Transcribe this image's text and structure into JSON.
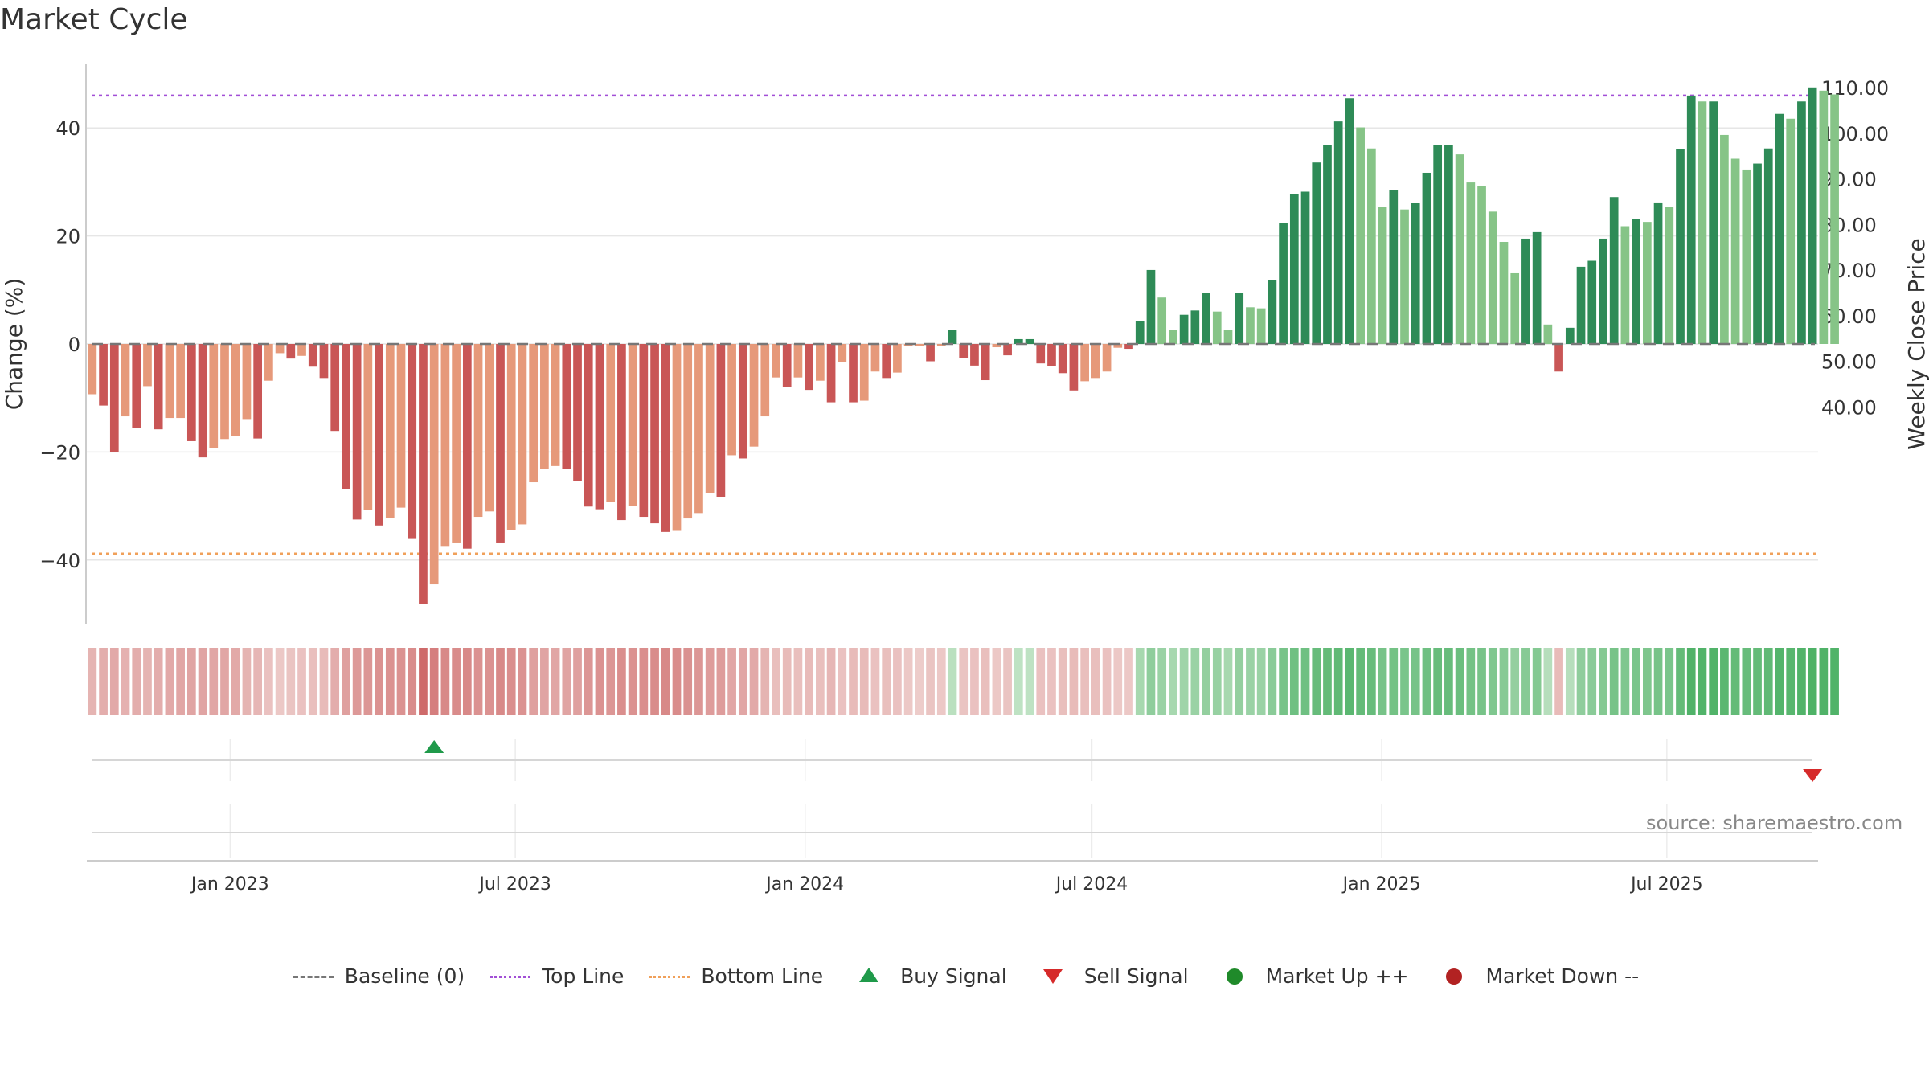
{
  "title": "Market Cycle",
  "source": "source: sharemaestro.com",
  "colors": {
    "down_dark": "#c95656",
    "down_light": "#e6997a",
    "up_dark": "#2e8b57",
    "up_light": "#86c487",
    "top_line": "#a24fd6",
    "bottom_line": "#f0a05a",
    "baseline": "#777777",
    "buy": "#1f9a4a",
    "sell": "#d62a2a",
    "market_up": "#1f8a2a",
    "market_down": "#b22222"
  },
  "chart_data": {
    "type": "bar",
    "title": "Market Cycle",
    "ylabel": "Change (%)",
    "y2label": "Weekly Close Price",
    "ylim": [
      -52,
      52
    ],
    "y_ticks": [
      "−40",
      "−20",
      "0",
      "20",
      "40"
    ],
    "y_tick_values": [
      -40,
      -20,
      0,
      20,
      40
    ],
    "y2lim": [
      34.8,
      111.0
    ],
    "y2_ticks": [
      "40.00",
      "50.00",
      "60.00",
      "70.00",
      "80.00",
      "90.00",
      "100.00",
      "110.00"
    ],
    "y2_tick_values": [
      40,
      50,
      60,
      70,
      80,
      90,
      100,
      110
    ],
    "x_start": "2022-10-02",
    "x_end": "2025-10-05",
    "x_ticks": [
      {
        "label": "Jan 2023",
        "date": "2023-01-01"
      },
      {
        "label": "Jul 2023",
        "date": "2023-07-01"
      },
      {
        "label": "Jan 2024",
        "date": "2024-01-01"
      },
      {
        "label": "Jul 2024",
        "date": "2024-07-01"
      },
      {
        "label": "Jan 2025",
        "date": "2025-01-01"
      },
      {
        "label": "Jul 2025",
        "date": "2025-07-01"
      }
    ],
    "first_week": "2022-10-02",
    "change": [
      -9.3,
      -11.4,
      -20,
      -13.4,
      -15.6,
      -7.8,
      -15.8,
      -13.7,
      -13.7,
      -18,
      -21,
      -19.3,
      -17.6,
      -17,
      -13.9,
      -17.5,
      -6.8,
      -1.7,
      -2.7,
      -2.2,
      -4.2,
      -6.3,
      -16.1,
      -26.8,
      -32.5,
      -30.8,
      -33.6,
      -32.2,
      -30.3,
      -36.1,
      -48.2,
      -44.5,
      -37.4,
      -36.9,
      -37.9,
      -32,
      -31,
      -36.9,
      -34.5,
      -33.4,
      -25.6,
      -23.1,
      -22.6,
      -23.1,
      -25.3,
      -30.1,
      -30.6,
      -29.3,
      -32.6,
      -30,
      -32,
      -33.2,
      -34.8,
      -34.6,
      -32.3,
      -31.3,
      -27.6,
      -28.3,
      -20.6,
      -21.2,
      -19,
      -13.4,
      -6.2,
      -8,
      -6.2,
      -8.5,
      -6.8,
      -10.8,
      -3.4,
      -10.8,
      -10.5,
      -5.1,
      -6.3,
      -5.3,
      -0.3,
      -0.3,
      -3.2,
      -0.4,
      2.6,
      -2.6,
      -4,
      -6.7,
      -0.6,
      -2.1,
      0.9,
      0.9,
      -3.6,
      -4.1,
      -5.4,
      -8.6,
      -6.9,
      -6.3,
      -5.1,
      -0.7,
      -0.9,
      4.2,
      13.7,
      8.6,
      2.6,
      5.4,
      6.2,
      9.4,
      6,
      2.6,
      9.4,
      6.8,
      6.6,
      11.9,
      22.4,
      27.8,
      28.2,
      33.6,
      36.8,
      41.2,
      45.5,
      40.1,
      36.2,
      25.4,
      28.5,
      24.9,
      26.1,
      31.7,
      36.8,
      36.8,
      35.1,
      29.9,
      29.3,
      24.5,
      18.9,
      13.1,
      19.5,
      20.7,
      3.6,
      -5.1,
      3,
      14.3,
      15.4,
      19.5,
      27.2,
      21.8,
      23.1,
      22.6,
      26.2,
      25.4,
      36.1,
      46,
      44.9,
      44.9,
      38.7,
      34.3,
      32.3,
      33.4,
      36.2,
      42.6,
      41.7,
      44.9,
      47.5,
      46.9,
      46.2
    ],
    "market_strength": [
      0.3,
      0.35,
      0.38,
      0.32,
      0.35,
      0.3,
      0.35,
      0.38,
      0.4,
      0.42,
      0.42,
      0.4,
      0.4,
      0.38,
      0.3,
      0.28,
      0.2,
      0.15,
      0.18,
      0.2,
      0.22,
      0.25,
      0.35,
      0.45,
      0.5,
      0.52,
      0.55,
      0.55,
      0.55,
      0.6,
      0.85,
      0.7,
      0.62,
      0.6,
      0.62,
      0.55,
      0.55,
      0.62,
      0.58,
      0.55,
      0.45,
      0.42,
      0.4,
      0.42,
      0.45,
      0.52,
      0.55,
      0.52,
      0.58,
      0.55,
      0.58,
      0.6,
      0.62,
      0.6,
      0.56,
      0.52,
      0.48,
      0.48,
      0.4,
      0.4,
      0.38,
      0.3,
      0.22,
      0.25,
      0.22,
      0.25,
      0.22,
      0.28,
      0.2,
      0.25,
      0.25,
      0.2,
      0.22,
      0.2,
      0.15,
      0.12,
      0.18,
      0.15,
      0.18,
      0.18,
      0.2,
      0.22,
      0.15,
      0.18,
      0.15,
      0.15,
      0.2,
      0.2,
      0.22,
      0.25,
      0.22,
      0.22,
      0.2,
      0.15,
      0.15,
      0.3,
      0.45,
      0.38,
      0.3,
      0.35,
      0.38,
      0.42,
      0.4,
      0.3,
      0.42,
      0.38,
      0.38,
      0.48,
      0.6,
      0.65,
      0.65,
      0.7,
      0.72,
      0.75,
      0.78,
      0.72,
      0.7,
      0.6,
      0.62,
      0.58,
      0.6,
      0.65,
      0.7,
      0.7,
      0.68,
      0.62,
      0.6,
      0.55,
      0.5,
      0.42,
      0.5,
      0.52,
      0.2,
      0.25,
      0.2,
      0.45,
      0.48,
      0.52,
      0.6,
      0.55,
      0.58,
      0.56,
      0.6,
      0.58,
      0.72,
      0.85,
      0.84,
      0.84,
      0.78,
      0.72,
      0.7,
      0.72,
      0.75,
      0.82,
      0.8,
      0.84,
      0.86,
      0.85,
      0.84
    ],
    "series": [
      {
        "name": "Baseline (0)",
        "values": [
          0
        ]
      },
      {
        "name": "Top Line",
        "values": [
          46
        ]
      },
      {
        "name": "Bottom Line",
        "values": [
          -38.8
        ]
      }
    ],
    "signals": [
      {
        "type": "buy",
        "date": "2023-05-07"
      },
      {
        "type": "sell",
        "date": "2025-09-28"
      }
    ]
  },
  "legend": [
    {
      "key": "baseline",
      "label": "Baseline (0)"
    },
    {
      "key": "top",
      "label": "Top Line"
    },
    {
      "key": "bottom",
      "label": "Bottom Line"
    },
    {
      "key": "buy",
      "label": "Buy Signal"
    },
    {
      "key": "sell",
      "label": "Sell Signal"
    },
    {
      "key": "mup",
      "label": "Market Up ++"
    },
    {
      "key": "mdown",
      "label": "Market Down --"
    }
  ]
}
